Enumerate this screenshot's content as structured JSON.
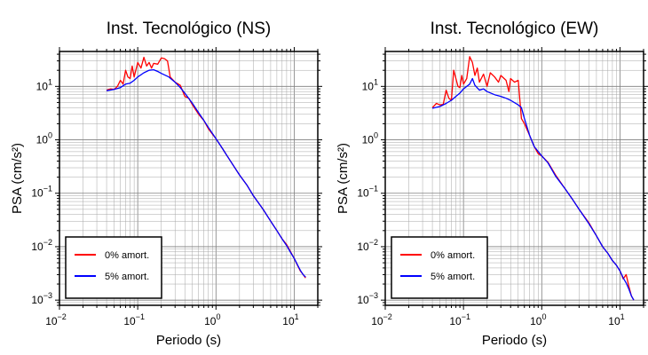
{
  "chart_data": [
    {
      "type": "line",
      "title": "Inst. Tecnológico (NS)",
      "xlabel": "Periodo (s)",
      "ylabel": "PSA (cm/s²)",
      "xscale": "log",
      "yscale": "log",
      "xlim": [
        0.01,
        20
      ],
      "ylim": [
        0.0008,
        45
      ],
      "grid": true,
      "legend_position": "bottom-left",
      "x_ticks": [
        {
          "value": 0.01,
          "base": "10",
          "exp": "−2"
        },
        {
          "value": 0.1,
          "base": "10",
          "exp": "−1"
        },
        {
          "value": 1,
          "base": "10",
          "exp": "0"
        },
        {
          "value": 10,
          "base": "10",
          "exp": "1"
        }
      ],
      "y_ticks": [
        {
          "value": 0.001,
          "base": "10",
          "exp": "−3"
        },
        {
          "value": 0.01,
          "base": "10",
          "exp": "−2"
        },
        {
          "value": 0.1,
          "base": "10",
          "exp": "−1"
        },
        {
          "value": 1,
          "base": "10",
          "exp": "0"
        },
        {
          "value": 10,
          "base": "10",
          "exp": "1"
        }
      ],
      "series": [
        {
          "name": "0% amort.",
          "color": "#ff0000",
          "points": [
            [
              0.04,
              8.5
            ],
            [
              0.045,
              9
            ],
            [
              0.05,
              8.8
            ],
            [
              0.055,
              10
            ],
            [
              0.06,
              13
            ],
            [
              0.065,
              11
            ],
            [
              0.07,
              20
            ],
            [
              0.075,
              15
            ],
            [
              0.08,
              14
            ],
            [
              0.085,
              24
            ],
            [
              0.09,
              15
            ],
            [
              0.1,
              28
            ],
            [
              0.11,
              22
            ],
            [
              0.12,
              35
            ],
            [
              0.13,
              24
            ],
            [
              0.14,
              28
            ],
            [
              0.15,
              22
            ],
            [
              0.16,
              27
            ],
            [
              0.18,
              26
            ],
            [
              0.2,
              34
            ],
            [
              0.22,
              33
            ],
            [
              0.24,
              30
            ],
            [
              0.26,
              15
            ],
            [
              0.3,
              12
            ],
            [
              0.35,
              10.5
            ],
            [
              0.4,
              6.5
            ],
            [
              0.45,
              6
            ],
            [
              0.5,
              4.5
            ],
            [
              0.6,
              3
            ],
            [
              0.7,
              2.3
            ],
            [
              0.8,
              1.6
            ],
            [
              1,
              1.05
            ],
            [
              1.2,
              0.7
            ],
            [
              1.5,
              0.42
            ],
            [
              2,
              0.22
            ],
            [
              2.5,
              0.14
            ],
            [
              3,
              0.09
            ],
            [
              4,
              0.05
            ],
            [
              5,
              0.03
            ],
            [
              6,
              0.02
            ],
            [
              7,
              0.014
            ],
            [
              8,
              0.011
            ],
            [
              9,
              0.008
            ],
            [
              10,
              0.006
            ],
            [
              11,
              0.0045
            ],
            [
              12,
              0.0035
            ],
            [
              13,
              0.003
            ],
            [
              14,
              0.0026
            ]
          ]
        },
        {
          "name": "5% amort.",
          "color": "#0000ff",
          "points": [
            [
              0.04,
              8.3
            ],
            [
              0.05,
              8.8
            ],
            [
              0.06,
              9.5
            ],
            [
              0.07,
              11
            ],
            [
              0.08,
              11.5
            ],
            [
              0.09,
              13
            ],
            [
              0.1,
              15
            ],
            [
              0.12,
              18
            ],
            [
              0.14,
              20
            ],
            [
              0.16,
              20.5
            ],
            [
              0.18,
              19
            ],
            [
              0.2,
              17.5
            ],
            [
              0.25,
              15
            ],
            [
              0.3,
              12
            ],
            [
              0.35,
              9.5
            ],
            [
              0.4,
              7.5
            ],
            [
              0.5,
              4.8
            ],
            [
              0.6,
              3.2
            ],
            [
              0.7,
              2.3
            ],
            [
              0.8,
              1.7
            ],
            [
              1,
              1.05
            ],
            [
              1.2,
              0.7
            ],
            [
              1.5,
              0.42
            ],
            [
              2,
              0.22
            ],
            [
              2.5,
              0.14
            ],
            [
              3,
              0.09
            ],
            [
              4,
              0.05
            ],
            [
              5,
              0.03
            ],
            [
              6,
              0.02
            ],
            [
              7,
              0.014
            ],
            [
              8,
              0.0105
            ],
            [
              9,
              0.0078
            ],
            [
              10,
              0.006
            ],
            [
              11,
              0.0046
            ],
            [
              12,
              0.0036
            ],
            [
              13,
              0.003
            ],
            [
              14,
              0.0027
            ]
          ]
        }
      ]
    },
    {
      "type": "line",
      "title": "Inst. Tecnológico (EW)",
      "xlabel": "Periodo (s)",
      "ylabel": "PSA (cm/s²)",
      "xscale": "log",
      "yscale": "log",
      "xlim": [
        0.01,
        20
      ],
      "ylim": [
        0.0008,
        45
      ],
      "grid": true,
      "legend_position": "bottom-left",
      "x_ticks": [
        {
          "value": 0.01,
          "base": "10",
          "exp": "−2"
        },
        {
          "value": 0.1,
          "base": "10",
          "exp": "−1"
        },
        {
          "value": 1,
          "base": "10",
          "exp": "0"
        },
        {
          "value": 10,
          "base": "10",
          "exp": "1"
        }
      ],
      "y_ticks": [
        {
          "value": 0.001,
          "base": "10",
          "exp": "−3"
        },
        {
          "value": 0.01,
          "base": "10",
          "exp": "−2"
        },
        {
          "value": 0.1,
          "base": "10",
          "exp": "−1"
        },
        {
          "value": 1,
          "base": "10",
          "exp": "0"
        },
        {
          "value": 10,
          "base": "10",
          "exp": "1"
        }
      ],
      "series": [
        {
          "name": "0% amort.",
          "color": "#ff0000",
          "points": [
            [
              0.04,
              4
            ],
            [
              0.045,
              4.8
            ],
            [
              0.05,
              4.5
            ],
            [
              0.055,
              4.6
            ],
            [
              0.06,
              8.5
            ],
            [
              0.065,
              6
            ],
            [
              0.07,
              5.5
            ],
            [
              0.075,
              20
            ],
            [
              0.08,
              14
            ],
            [
              0.085,
              10
            ],
            [
              0.09,
              9.5
            ],
            [
              0.095,
              16
            ],
            [
              0.1,
              11
            ],
            [
              0.11,
              14
            ],
            [
              0.12,
              36
            ],
            [
              0.13,
              28
            ],
            [
              0.14,
              16
            ],
            [
              0.15,
              22
            ],
            [
              0.16,
              12
            ],
            [
              0.18,
              17
            ],
            [
              0.2,
              10
            ],
            [
              0.22,
              18
            ],
            [
              0.25,
              15
            ],
            [
              0.28,
              12
            ],
            [
              0.3,
              16
            ],
            [
              0.35,
              13
            ],
            [
              0.38,
              8
            ],
            [
              0.4,
              14
            ],
            [
              0.45,
              12
            ],
            [
              0.5,
              13
            ],
            [
              0.55,
              2.5
            ],
            [
              0.6,
              2
            ],
            [
              0.7,
              1.2
            ],
            [
              0.8,
              0.75
            ],
            [
              0.9,
              0.55
            ],
            [
              1,
              0.5
            ],
            [
              1.2,
              0.38
            ],
            [
              1.5,
              0.22
            ],
            [
              2,
              0.12
            ],
            [
              2.5,
              0.075
            ],
            [
              3,
              0.05
            ],
            [
              4,
              0.028
            ],
            [
              5,
              0.016
            ],
            [
              6,
              0.01
            ],
            [
              7,
              0.0075
            ],
            [
              8,
              0.0055
            ],
            [
              9,
              0.0045
            ],
            [
              10,
              0.0035
            ],
            [
              11,
              0.0025
            ],
            [
              12,
              0.003
            ],
            [
              13,
              0.0018
            ],
            [
              14,
              0.0012
            ],
            [
              15,
              0.001
            ]
          ]
        },
        {
          "name": "5% amort.",
          "color": "#0000ff",
          "points": [
            [
              0.04,
              3.9
            ],
            [
              0.05,
              4.2
            ],
            [
              0.06,
              4.8
            ],
            [
              0.07,
              5.5
            ],
            [
              0.08,
              6.5
            ],
            [
              0.09,
              7.5
            ],
            [
              0.1,
              9
            ],
            [
              0.12,
              11
            ],
            [
              0.13,
              14
            ],
            [
              0.14,
              10.5
            ],
            [
              0.16,
              8.5
            ],
            [
              0.18,
              9
            ],
            [
              0.2,
              8
            ],
            [
              0.25,
              7
            ],
            [
              0.3,
              6.5
            ],
            [
              0.35,
              6
            ],
            [
              0.4,
              5.5
            ],
            [
              0.5,
              4.5
            ],
            [
              0.55,
              4
            ],
            [
              0.6,
              2.5
            ],
            [
              0.7,
              1.2
            ],
            [
              0.8,
              0.75
            ],
            [
              1,
              0.5
            ],
            [
              1.2,
              0.37
            ],
            [
              1.5,
              0.21
            ],
            [
              2,
              0.12
            ],
            [
              2.5,
              0.075
            ],
            [
              3,
              0.05
            ],
            [
              4,
              0.027
            ],
            [
              5,
              0.016
            ],
            [
              6,
              0.01
            ],
            [
              7,
              0.0075
            ],
            [
              8,
              0.0055
            ],
            [
              9,
              0.0045
            ],
            [
              10,
              0.0035
            ],
            [
              11,
              0.0026
            ],
            [
              12,
              0.0021
            ],
            [
              13,
              0.0016
            ],
            [
              14,
              0.0012
            ],
            [
              15,
              0.001
            ]
          ]
        }
      ]
    }
  ]
}
